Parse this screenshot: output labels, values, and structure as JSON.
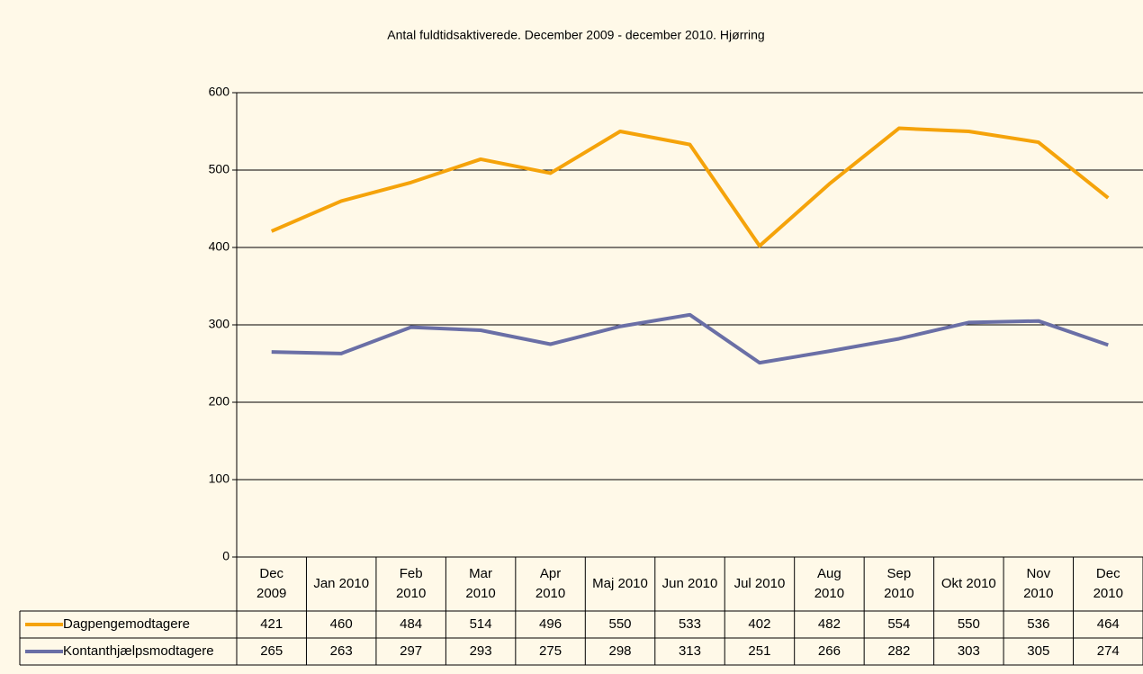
{
  "chart_data": {
    "type": "line",
    "title": "Antal fuldtidsaktiverede. December 2009 - december 2010. Hjørring",
    "categories": [
      "Dec\n2009",
      "Jan 2010",
      "Feb\n2010",
      "Mar\n2010",
      "Apr\n2010",
      "Maj 2010",
      "Jun 2010",
      "Jul 2010",
      "Aug\n2010",
      "Sep\n2010",
      "Okt 2010",
      "Nov\n2010",
      "Dec\n2010"
    ],
    "series": [
      {
        "name": "Dagpengemodtagere",
        "color": "#f5a30a",
        "values": [
          421,
          460,
          484,
          514,
          496,
          550,
          533,
          402,
          482,
          554,
          550,
          536,
          464
        ]
      },
      {
        "name": "Kontanthjælpsmodtagere",
        "color": "#6a6fa6",
        "values": [
          265,
          263,
          297,
          293,
          275,
          298,
          313,
          251,
          266,
          282,
          303,
          305,
          274
        ]
      }
    ],
    "ylim": [
      0,
      600
    ],
    "yticks": [
      0,
      100,
      200,
      300,
      400,
      500,
      600
    ],
    "grid": true
  }
}
